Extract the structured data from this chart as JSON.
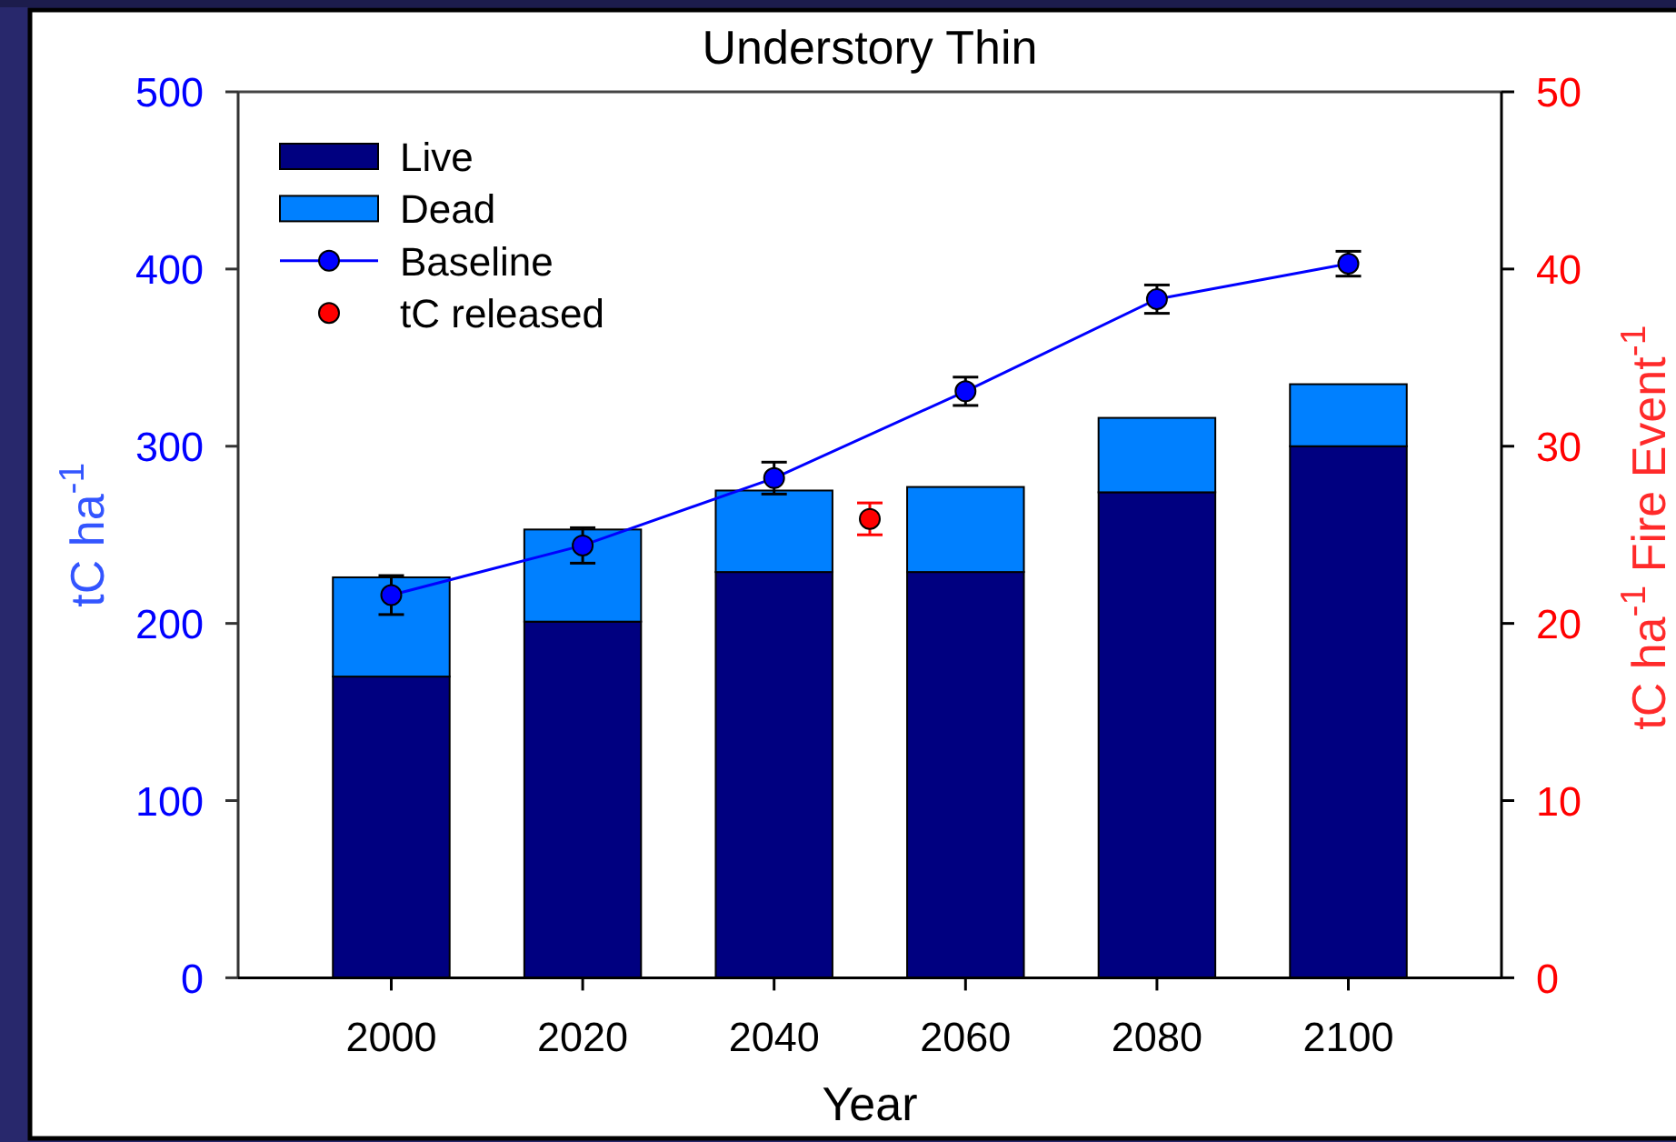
{
  "chart_data": {
    "type": "bar",
    "title": "Understory Thin",
    "xlabel": "Year",
    "ylabel": "tC ha$^{-1}$",
    "y2label": "tC ha$^{-1}$ Fire Event$^{-1}$",
    "x": [
      2000,
      2020,
      2040,
      2060,
      2080,
      2100
    ],
    "xlim": [
      1984,
      2116
    ],
    "xticks": [
      2000,
      2020,
      2040,
      2060,
      2080,
      2100
    ],
    "ylim": [
      0,
      500
    ],
    "yticks": [
      0,
      100,
      200,
      300,
      400,
      500
    ],
    "y2lim": [
      0,
      50
    ],
    "y2ticks": [
      0,
      10,
      20,
      30,
      40,
      50
    ],
    "stacked": true,
    "legend": "top left",
    "marker": "circle",
    "series": [
      {
        "name": "Live",
        "color": "#000080",
        "values": [
          170,
          201,
          229,
          229,
          274,
          300
        ]
      },
      {
        "name": "Dead",
        "color": "#0080ff",
        "values": [
          56,
          52,
          46,
          48,
          42,
          35
        ]
      },
      {
        "name": "Baseline",
        "type": "line",
        "color": "#0000ff",
        "values": [
          216,
          244,
          282,
          331,
          383,
          403
        ],
        "errors": [
          11,
          10,
          9,
          8,
          8,
          7
        ]
      },
      {
        "name": "tC released",
        "type": "scatter",
        "axis": "y2",
        "x": [
          2050
        ],
        "color": "#ff0000",
        "values": [
          25.9
        ],
        "errors": [
          0.9
        ]
      }
    ]
  }
}
